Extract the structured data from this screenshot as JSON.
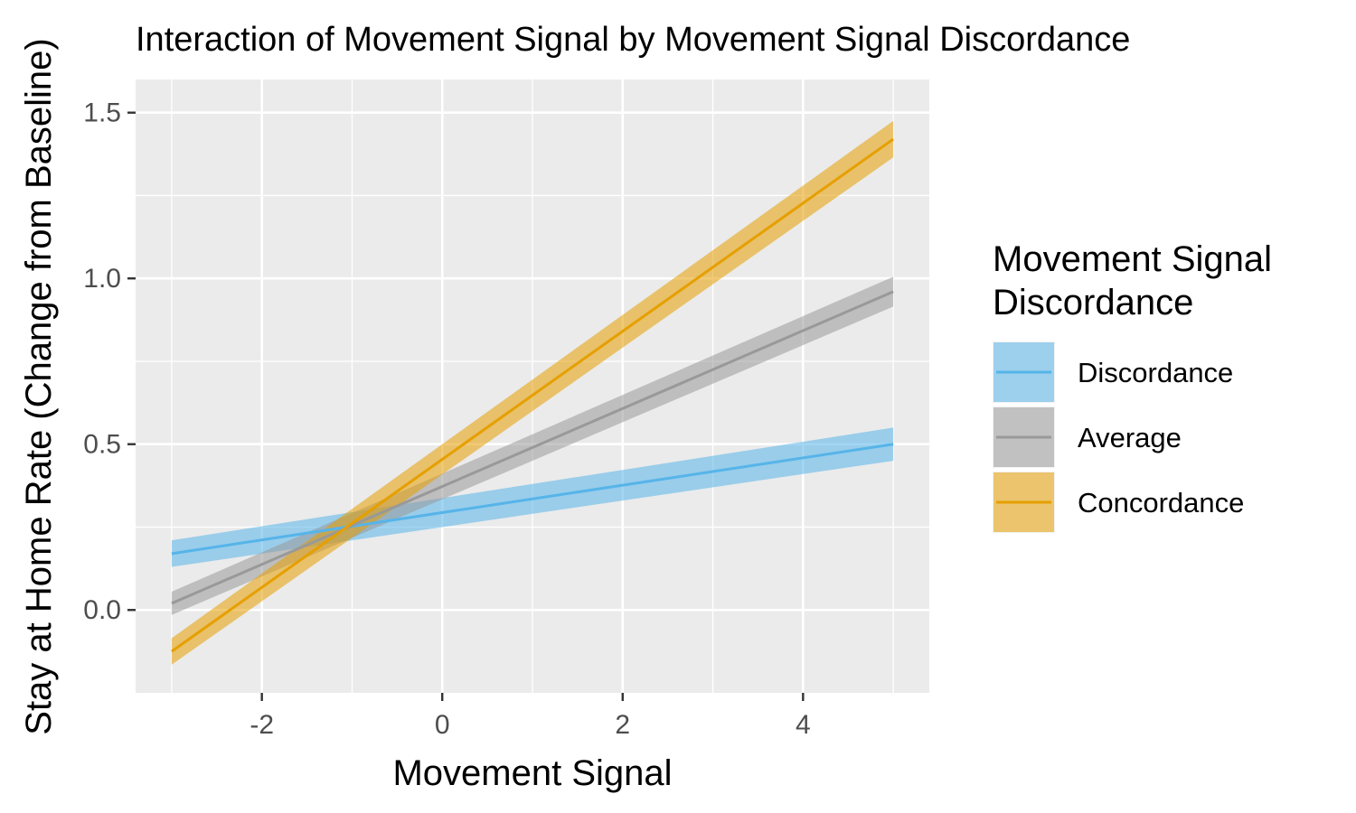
{
  "chart_data": {
    "type": "line",
    "title": "Interaction of Movement Signal by Movement Signal Discordance",
    "xlabel": "Movement Signal",
    "ylabel": "Stay at Home Rate (Change from Baseline)",
    "xlim": [
      -3.4,
      5.4
    ],
    "ylim": [
      -0.25,
      1.6
    ],
    "x_ticks": [
      -2,
      0,
      2,
      4
    ],
    "x_tick_labels": [
      "-2",
      "0",
      "2",
      "4"
    ],
    "y_ticks": [
      0.0,
      0.5,
      1.0,
      1.5
    ],
    "y_tick_labels": [
      "0.0",
      "0.5",
      "1.0",
      "1.5"
    ],
    "grid": true,
    "legend": {
      "title": "Movement Signal Discordance",
      "title_lines": [
        "Movement Signal",
        "Discordance"
      ],
      "position": "right"
    },
    "series": [
      {
        "name": "Discordance",
        "color": "#56B4E9",
        "x": [
          -3,
          5
        ],
        "y": [
          0.17,
          0.5
        ],
        "lower": [
          0.13,
          0.45
        ],
        "upper": [
          0.21,
          0.55
        ]
      },
      {
        "name": "Average",
        "color": "#999999",
        "x": [
          -3,
          5
        ],
        "y": [
          0.02,
          0.96
        ],
        "lower": [
          -0.015,
          0.915
        ],
        "upper": [
          0.055,
          1.005
        ]
      },
      {
        "name": "Concordance",
        "color": "#E69F00",
        "x": [
          -3,
          5
        ],
        "y": [
          -0.125,
          1.42
        ],
        "lower": [
          -0.165,
          1.365
        ],
        "upper": [
          -0.085,
          1.475
        ]
      }
    ]
  }
}
